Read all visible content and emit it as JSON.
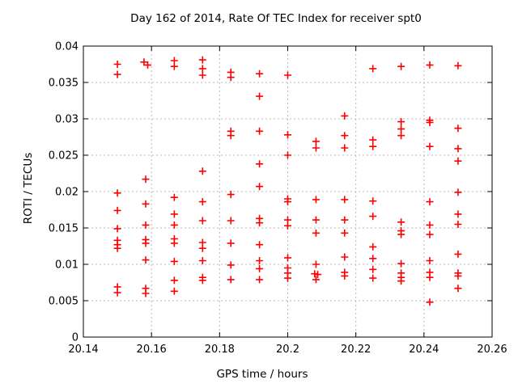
{
  "chart_data": {
    "type": "scatter",
    "title": "Day 162 of 2014, Rate Of TEC Index for receiver spt0",
    "xlabel": "GPS time / hours",
    "ylabel": "ROTI / TECUs",
    "xlim": [
      20.14,
      20.26
    ],
    "ylim": [
      0,
      0.04
    ],
    "xticks": [
      {
        "value": 20.14,
        "label": "20.14"
      },
      {
        "value": 20.16,
        "label": "20.16"
      },
      {
        "value": 20.18,
        "label": "20.18"
      },
      {
        "value": 20.2,
        "label": "20.2"
      },
      {
        "value": 20.22,
        "label": "20.22"
      },
      {
        "value": 20.24,
        "label": "20.24"
      },
      {
        "value": 20.26,
        "label": "20.26"
      }
    ],
    "yticks": [
      {
        "value": 0,
        "label": "0"
      },
      {
        "value": 0.005,
        "label": "0.005"
      },
      {
        "value": 0.01,
        "label": "0.01"
      },
      {
        "value": 0.015,
        "label": "0.015"
      },
      {
        "value": 0.02,
        "label": "0.02"
      },
      {
        "value": 0.025,
        "label": "0.025"
      },
      {
        "value": 0.03,
        "label": "0.03"
      },
      {
        "value": 0.035,
        "label": "0.035"
      },
      {
        "value": 0.04,
        "label": "0.04"
      }
    ],
    "grid": true,
    "legend": "none",
    "marker": "plus",
    "marker_color": "#ff0000",
    "grid_color": "#b8b8b8",
    "axis_color": "#000000",
    "points": [
      [
        20.15,
        0.0375
      ],
      [
        20.15,
        0.0361
      ],
      [
        20.15,
        0.0198
      ],
      [
        20.15,
        0.0174
      ],
      [
        20.15,
        0.0149
      ],
      [
        20.15,
        0.0133
      ],
      [
        20.15,
        0.0127
      ],
      [
        20.15,
        0.0122
      ],
      [
        20.15,
        0.0069
      ],
      [
        20.15,
        0.0061
      ],
      [
        20.1578,
        0.0378
      ],
      [
        20.1589,
        0.0374
      ],
      [
        20.1583,
        0.0217
      ],
      [
        20.1583,
        0.0183
      ],
      [
        20.1583,
        0.0154
      ],
      [
        20.1583,
        0.0134
      ],
      [
        20.1583,
        0.0129
      ],
      [
        20.1583,
        0.0106
      ],
      [
        20.1583,
        0.0067
      ],
      [
        20.1583,
        0.006
      ],
      [
        20.1667,
        0.038
      ],
      [
        20.1667,
        0.0372
      ],
      [
        20.1667,
        0.0192
      ],
      [
        20.1667,
        0.0169
      ],
      [
        20.1667,
        0.0154
      ],
      [
        20.1667,
        0.0135
      ],
      [
        20.1667,
        0.0129
      ],
      [
        20.1667,
        0.0104
      ],
      [
        20.1667,
        0.0078
      ],
      [
        20.1667,
        0.0063
      ],
      [
        20.175,
        0.0381
      ],
      [
        20.175,
        0.0369
      ],
      [
        20.175,
        0.036
      ],
      [
        20.175,
        0.0228
      ],
      [
        20.175,
        0.0186
      ],
      [
        20.175,
        0.016
      ],
      [
        20.175,
        0.013
      ],
      [
        20.175,
        0.0122
      ],
      [
        20.175,
        0.0105
      ],
      [
        20.175,
        0.0082
      ],
      [
        20.175,
        0.0078
      ],
      [
        20.1833,
        0.0364
      ],
      [
        20.1833,
        0.0357
      ],
      [
        20.1833,
        0.0283
      ],
      [
        20.1833,
        0.0277
      ],
      [
        20.1833,
        0.0196
      ],
      [
        20.1833,
        0.016
      ],
      [
        20.1833,
        0.0129
      ],
      [
        20.1833,
        0.0099
      ],
      [
        20.1833,
        0.0079
      ],
      [
        20.1917,
        0.0362
      ],
      [
        20.1917,
        0.0331
      ],
      [
        20.1917,
        0.0283
      ],
      [
        20.1917,
        0.0238
      ],
      [
        20.1917,
        0.0207
      ],
      [
        20.1917,
        0.0163
      ],
      [
        20.1917,
        0.0157
      ],
      [
        20.1917,
        0.0127
      ],
      [
        20.1917,
        0.0105
      ],
      [
        20.1917,
        0.0094
      ],
      [
        20.1917,
        0.0079
      ],
      [
        20.2,
        0.036
      ],
      [
        20.2,
        0.0278
      ],
      [
        20.2,
        0.025
      ],
      [
        20.2,
        0.019
      ],
      [
        20.2,
        0.0186
      ],
      [
        20.2,
        0.0161
      ],
      [
        20.2,
        0.0153
      ],
      [
        20.2,
        0.0109
      ],
      [
        20.2,
        0.0095
      ],
      [
        20.2,
        0.0088
      ],
      [
        20.2,
        0.0081
      ],
      [
        20.2083,
        0.0269
      ],
      [
        20.2083,
        0.026
      ],
      [
        20.2083,
        0.0189
      ],
      [
        20.2083,
        0.0161
      ],
      [
        20.2083,
        0.0143
      ],
      [
        20.2083,
        0.01
      ],
      [
        20.2079,
        0.0087
      ],
      [
        20.2088,
        0.0086
      ],
      [
        20.2083,
        0.0079
      ],
      [
        20.2167,
        0.0304
      ],
      [
        20.2167,
        0.0277
      ],
      [
        20.2167,
        0.026
      ],
      [
        20.2167,
        0.0189
      ],
      [
        20.2167,
        0.0161
      ],
      [
        20.2167,
        0.0143
      ],
      [
        20.2167,
        0.011
      ],
      [
        20.2167,
        0.0089
      ],
      [
        20.2167,
        0.0084
      ],
      [
        20.225,
        0.0369
      ],
      [
        20.225,
        0.0271
      ],
      [
        20.225,
        0.0262
      ],
      [
        20.225,
        0.0187
      ],
      [
        20.225,
        0.0166
      ],
      [
        20.225,
        0.0124
      ],
      [
        20.225,
        0.0108
      ],
      [
        20.225,
        0.0093
      ],
      [
        20.225,
        0.0081
      ],
      [
        20.2333,
        0.0372
      ],
      [
        20.2333,
        0.0296
      ],
      [
        20.2333,
        0.0286
      ],
      [
        20.2333,
        0.0277
      ],
      [
        20.2333,
        0.0158
      ],
      [
        20.2333,
        0.0146
      ],
      [
        20.2333,
        0.0141
      ],
      [
        20.2333,
        0.0101
      ],
      [
        20.2333,
        0.0088
      ],
      [
        20.2333,
        0.0082
      ],
      [
        20.2333,
        0.0077
      ],
      [
        20.2417,
        0.0374
      ],
      [
        20.2417,
        0.0298
      ],
      [
        20.2417,
        0.0295
      ],
      [
        20.2417,
        0.0262
      ],
      [
        20.2417,
        0.0186
      ],
      [
        20.2417,
        0.0154
      ],
      [
        20.2417,
        0.0141
      ],
      [
        20.2417,
        0.0105
      ],
      [
        20.2417,
        0.0089
      ],
      [
        20.2417,
        0.0082
      ],
      [
        20.2417,
        0.0048
      ],
      [
        20.25,
        0.0373
      ],
      [
        20.25,
        0.0287
      ],
      [
        20.25,
        0.0259
      ],
      [
        20.25,
        0.0242
      ],
      [
        20.25,
        0.0199
      ],
      [
        20.25,
        0.0169
      ],
      [
        20.25,
        0.0155
      ],
      [
        20.25,
        0.0114
      ],
      [
        20.25,
        0.0088
      ],
      [
        20.25,
        0.0084
      ],
      [
        20.25,
        0.0067
      ]
    ]
  }
}
